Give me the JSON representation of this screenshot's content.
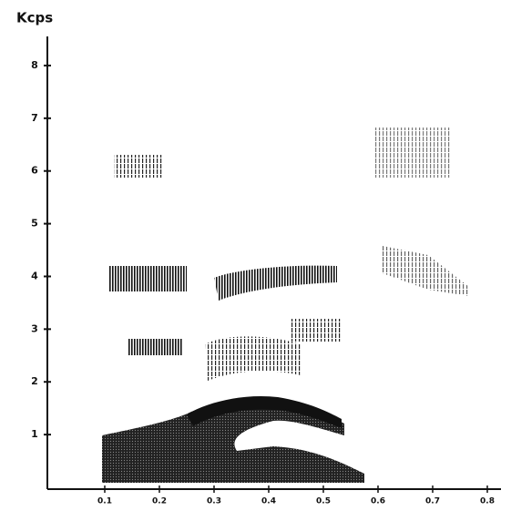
{
  "chart_data": {
    "type": "spectrogram",
    "y_label": "Kcps",
    "xlim": [
      0,
      0.82
    ],
    "xticks": [
      0.1,
      0.2,
      0.3,
      0.4,
      0.5,
      0.6,
      0.7,
      0.8
    ],
    "ylim": [
      0,
      8.5
    ],
    "yticks": [
      1,
      2,
      3,
      4,
      5,
      6,
      7,
      8
    ]
  }
}
